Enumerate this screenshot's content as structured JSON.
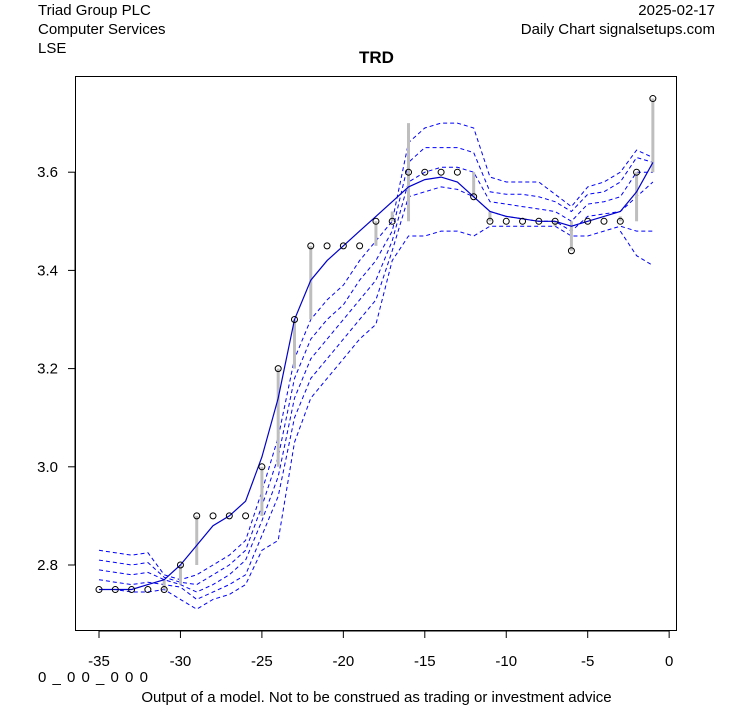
{
  "header": {
    "company": "Triad Group PLC",
    "sector": "Computer Services",
    "exchange": "LSE",
    "date": "2025-02-17",
    "source": "Daily Chart signalsetups.com"
  },
  "footer": {
    "code": "0 _ 0 0 _ 0 0 0",
    "disclaimer": "Output of a model. Not to be construed as trading or investment advice"
  },
  "colors": {
    "model_line": "#0000cc",
    "bands": "#0000ff",
    "wicks": "#bebebe",
    "points": "#000000"
  },
  "chart_data": {
    "type": "line",
    "title": "TRD",
    "xlabel": "",
    "ylabel": "",
    "xlim": [
      -36.5,
      0.5
    ],
    "ylim": [
      2.68,
      3.81
    ],
    "x_ticks": [
      -35,
      -30,
      -25,
      -20,
      -15,
      -10,
      -5,
      0
    ],
    "y_ticks": [
      2.8,
      3.0,
      3.2,
      3.4,
      3.6
    ],
    "grid": false,
    "x": [
      -35,
      -34,
      -33,
      -32,
      -31,
      -30,
      -29,
      -28,
      -27,
      -26,
      -25,
      -24,
      -23,
      -22,
      -21,
      -20,
      -19,
      -18,
      -17,
      -16,
      -15,
      -14,
      -13,
      -12,
      -11,
      -10,
      -9,
      -8,
      -7,
      -6,
      -5,
      -4,
      -3,
      -2,
      -1
    ],
    "close": [
      2.75,
      2.75,
      2.75,
      2.75,
      2.75,
      2.8,
      2.9,
      2.9,
      2.9,
      2.9,
      3.0,
      3.2,
      3.3,
      3.45,
      3.45,
      3.45,
      3.45,
      3.5,
      3.5,
      3.6,
      3.6,
      3.6,
      3.6,
      3.55,
      3.5,
      3.5,
      3.5,
      3.5,
      3.5,
      3.44,
      3.5,
      3.5,
      3.5,
      3.6,
      3.75
    ],
    "range_low": [
      2.75,
      2.75,
      2.75,
      2.75,
      2.75,
      2.76,
      2.8,
      2.9,
      2.9,
      2.9,
      2.9,
      3.0,
      3.2,
      3.3,
      3.45,
      3.45,
      3.45,
      3.45,
      3.5,
      3.5,
      3.6,
      3.6,
      3.6,
      3.55,
      3.5,
      3.5,
      3.5,
      3.5,
      3.49,
      3.44,
      3.5,
      3.5,
      3.5,
      3.5,
      3.6
    ],
    "range_high": [
      2.75,
      2.75,
      2.75,
      2.75,
      2.77,
      2.8,
      2.9,
      2.9,
      2.9,
      2.9,
      3.0,
      3.2,
      3.3,
      3.45,
      3.45,
      3.45,
      3.45,
      3.5,
      3.52,
      3.7,
      3.6,
      3.6,
      3.6,
      3.6,
      3.52,
      3.5,
      3.5,
      3.5,
      3.5,
      3.5,
      3.5,
      3.5,
      3.51,
      3.6,
      3.75
    ],
    "series": [
      {
        "name": "model",
        "style": "solid",
        "values": [
          2.75,
          2.75,
          2.75,
          2.76,
          2.77,
          2.8,
          2.84,
          2.88,
          2.9,
          2.93,
          3.02,
          3.14,
          3.3,
          3.38,
          3.42,
          3.45,
          3.48,
          3.51,
          3.54,
          3.57,
          3.585,
          3.59,
          3.58,
          3.55,
          3.52,
          3.51,
          3.505,
          3.5,
          3.5,
          3.49,
          3.5,
          3.51,
          3.52,
          3.56,
          3.62
        ]
      },
      {
        "name": "band_upper_2",
        "style": "dashed",
        "values": [
          2.83,
          2.825,
          2.82,
          2.825,
          2.78,
          2.77,
          2.78,
          2.8,
          2.82,
          2.85,
          2.95,
          3.06,
          3.22,
          3.3,
          3.34,
          3.37,
          3.42,
          3.46,
          3.5,
          3.66,
          3.69,
          3.7,
          3.7,
          3.69,
          3.59,
          3.58,
          3.58,
          3.58,
          3.555,
          3.53,
          3.57,
          3.58,
          3.6,
          3.645,
          3.63
        ]
      },
      {
        "name": "band_upper_1",
        "style": "dashed",
        "values": [
          2.81,
          2.805,
          2.8,
          2.805,
          2.775,
          2.765,
          2.76,
          2.78,
          2.8,
          2.83,
          2.92,
          3.02,
          3.18,
          3.26,
          3.3,
          3.33,
          3.38,
          3.42,
          3.48,
          3.62,
          3.65,
          3.65,
          3.65,
          3.64,
          3.56,
          3.555,
          3.555,
          3.55,
          3.54,
          3.52,
          3.555,
          3.56,
          3.58,
          3.63,
          3.62
        ]
      },
      {
        "name": "band_mid",
        "style": "dashed",
        "values": [
          2.79,
          2.785,
          2.78,
          2.785,
          2.77,
          2.76,
          2.745,
          2.76,
          2.78,
          2.81,
          2.89,
          2.98,
          3.14,
          3.22,
          3.26,
          3.3,
          3.34,
          3.38,
          3.46,
          3.58,
          3.6,
          3.61,
          3.61,
          3.6,
          3.54,
          3.535,
          3.53,
          3.525,
          3.52,
          3.5,
          3.535,
          3.54,
          3.55,
          3.6,
          3.6
        ]
      },
      {
        "name": "band_lower_1",
        "style": "dashed",
        "values": [
          2.77,
          2.765,
          2.76,
          2.765,
          2.76,
          2.755,
          2.73,
          2.745,
          2.76,
          2.78,
          2.86,
          2.94,
          3.1,
          3.18,
          3.22,
          3.26,
          3.3,
          3.34,
          3.44,
          3.55,
          3.56,
          3.57,
          3.565,
          3.55,
          3.52,
          3.51,
          3.505,
          3.5,
          3.5,
          3.48,
          3.51,
          3.515,
          3.52,
          3.55,
          3.58
        ]
      },
      {
        "name": "band_lower_2",
        "style": "dashed",
        "values": [
          2.75,
          2.75,
          2.745,
          2.745,
          2.75,
          2.73,
          2.71,
          2.73,
          2.74,
          2.76,
          2.83,
          2.85,
          3.05,
          3.14,
          3.18,
          3.22,
          3.26,
          3.29,
          3.42,
          3.47,
          3.47,
          3.48,
          3.48,
          3.47,
          3.49,
          3.49,
          3.49,
          3.49,
          3.49,
          3.47,
          3.47,
          3.48,
          3.49,
          3.48,
          3.48
        ]
      },
      {
        "name": "band_lower_3",
        "style": "dashed",
        "values": [
          null,
          null,
          null,
          null,
          null,
          null,
          null,
          null,
          null,
          null,
          null,
          null,
          null,
          null,
          null,
          null,
          null,
          null,
          null,
          null,
          null,
          null,
          null,
          null,
          null,
          null,
          null,
          null,
          null,
          null,
          null,
          null,
          3.48,
          3.43,
          3.41
        ]
      }
    ]
  }
}
